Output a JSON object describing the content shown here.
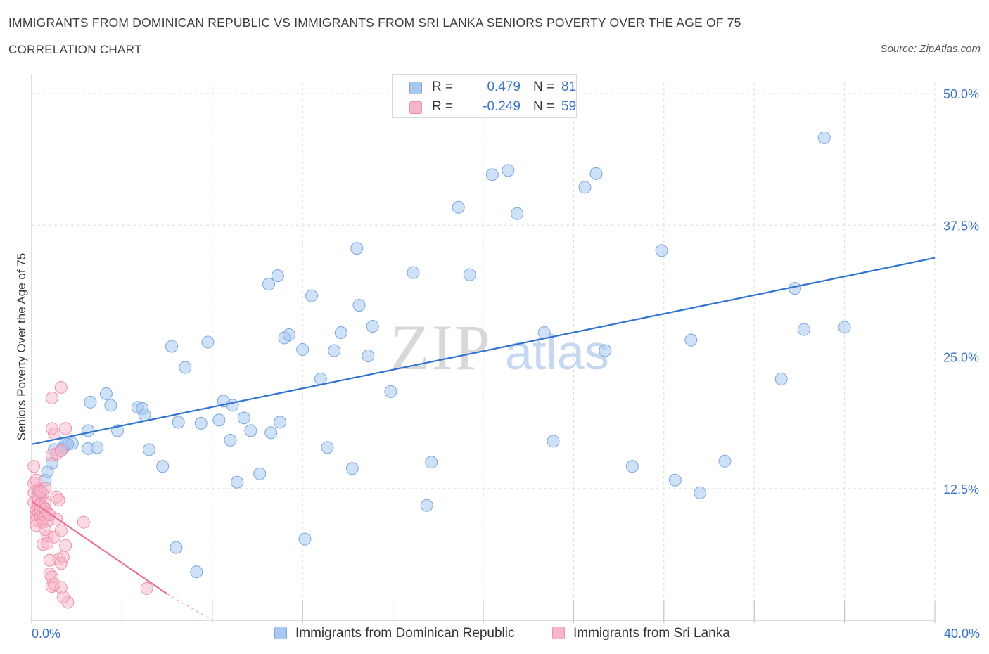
{
  "header": {
    "title": "IMMIGRANTS FROM DOMINICAN REPUBLIC VS IMMIGRANTS FROM SRI LANKA SENIORS POVERTY OVER THE AGE OF 75",
    "subtitle": "CORRELATION CHART",
    "source": "Source: ZipAtlas.com"
  },
  "legend": {
    "rows": [
      {
        "r_label": "R =",
        "r_value": "0.479",
        "n_label": "N =",
        "n_value": "81"
      },
      {
        "r_label": "R =",
        "r_value": "-0.249",
        "n_label": "N =",
        "n_value": "59"
      }
    ]
  },
  "colors": {
    "blue_fill": "#a8c8f0",
    "blue_stroke": "#7aa6e0",
    "blue_line": "#2f72d0",
    "pink_fill": "#f5b6c8",
    "pink_stroke": "#ef8fab",
    "pink_line": "#e8709a",
    "grid": "#dddddd",
    "axis_text": "#3b73c8"
  },
  "chart_data": {
    "type": "scatter",
    "title": "IMMIGRANTS FROM DOMINICAN REPUBLIC VS IMMIGRANTS FROM SRI LANKA SENIORS POVERTY OVER THE AGE OF 75",
    "xlabel": "",
    "ylabel": "Seniors Poverty Over the Age of 75",
    "xlim": [
      0,
      40
    ],
    "ylim": [
      0,
      50
    ],
    "x_tick_labels": [
      "0.0%",
      "40.0%"
    ],
    "y_ticks": [
      12.5,
      25,
      37.5,
      50
    ],
    "y_tick_labels": [
      "12.5%",
      "25.0%",
      "37.5%",
      "50.0%"
    ],
    "grid": true,
    "legend_position": "top-center",
    "watermark": "ZIPatlas",
    "series": [
      {
        "name": "Immigrants from Dominican Republic",
        "color": "#a8c8f0",
        "r": 0.479,
        "n": 81,
        "trend": {
          "x": [
            0,
            40
          ],
          "y": [
            16.7,
            34.4
          ]
        },
        "points": [
          [
            0.3,
            12.2
          ],
          [
            0.4,
            11.8
          ],
          [
            0.6,
            13.3
          ],
          [
            0.9,
            14.9
          ],
          [
            1.0,
            16.2
          ],
          [
            1.4,
            16.4
          ],
          [
            1.5,
            16.8
          ],
          [
            0.7,
            14.1
          ],
          [
            2.5,
            16.3
          ],
          [
            2.9,
            16.4
          ],
          [
            1.3,
            16.1
          ],
          [
            1.8,
            16.8
          ],
          [
            2.5,
            18.0
          ],
          [
            2.6,
            20.7
          ],
          [
            3.3,
            21.5
          ],
          [
            3.5,
            20.4
          ],
          [
            4.7,
            20.2
          ],
          [
            4.9,
            20.1
          ],
          [
            5.2,
            16.2
          ],
          [
            5.8,
            14.6
          ],
          [
            5.0,
            19.5
          ],
          [
            6.5,
            18.8
          ],
          [
            6.2,
            26.0
          ],
          [
            6.8,
            24.0
          ],
          [
            7.5,
            18.7
          ],
          [
            7.8,
            26.4
          ],
          [
            8.3,
            19.0
          ],
          [
            8.5,
            20.8
          ],
          [
            8.8,
            17.1
          ],
          [
            8.9,
            20.4
          ],
          [
            9.1,
            13.1
          ],
          [
            9.4,
            19.2
          ],
          [
            9.7,
            18.0
          ],
          [
            10.1,
            13.9
          ],
          [
            10.5,
            31.9
          ],
          [
            10.9,
            32.7
          ],
          [
            10.6,
            17.8
          ],
          [
            11.0,
            18.8
          ],
          [
            11.2,
            26.8
          ],
          [
            11.4,
            27.1
          ],
          [
            12.0,
            25.7
          ],
          [
            12.1,
            7.7
          ],
          [
            12.4,
            30.8
          ],
          [
            12.8,
            22.9
          ],
          [
            13.1,
            16.4
          ],
          [
            13.4,
            25.6
          ],
          [
            13.7,
            27.3
          ],
          [
            14.2,
            14.4
          ],
          [
            14.4,
            35.3
          ],
          [
            14.5,
            29.9
          ],
          [
            14.9,
            25.1
          ],
          [
            15.1,
            27.9
          ],
          [
            15.9,
            21.7
          ],
          [
            16.9,
            33.0
          ],
          [
            17.5,
            10.9
          ],
          [
            17.7,
            15.0
          ],
          [
            18.9,
            39.2
          ],
          [
            19.4,
            32.8
          ],
          [
            20.4,
            42.3
          ],
          [
            21.1,
            42.7
          ],
          [
            21.5,
            38.6
          ],
          [
            22.7,
            27.3
          ],
          [
            23.1,
            17.0
          ],
          [
            24.5,
            41.1
          ],
          [
            25.0,
            42.4
          ],
          [
            25.4,
            25.6
          ],
          [
            26.6,
            14.6
          ],
          [
            27.9,
            35.1
          ],
          [
            28.5,
            13.3
          ],
          [
            29.2,
            26.6
          ],
          [
            29.6,
            12.1
          ],
          [
            30.7,
            15.1
          ],
          [
            33.2,
            22.9
          ],
          [
            33.8,
            31.5
          ],
          [
            34.2,
            27.6
          ],
          [
            35.1,
            45.8
          ],
          [
            36.0,
            27.8
          ],
          [
            6.4,
            6.9
          ],
          [
            7.3,
            4.6
          ],
          [
            1.6,
            16.7
          ],
          [
            3.8,
            18.0
          ]
        ]
      },
      {
        "name": "Immigrants from Sri Lanka",
        "color": "#f5b6c8",
        "r": -0.249,
        "n": 59,
        "trend": {
          "x": [
            0,
            6.0
          ],
          "y": [
            11.3,
            2.5
          ]
        },
        "trend_dashed": {
          "x": [
            6.0,
            8.0
          ],
          "y": [
            2.5,
            -0.4
          ]
        },
        "points": [
          [
            0.1,
            14.6
          ],
          [
            0.1,
            13.0
          ],
          [
            0.1,
            12.1
          ],
          [
            0.1,
            11.2
          ],
          [
            0.2,
            10.4
          ],
          [
            0.2,
            10.0
          ],
          [
            0.2,
            9.5
          ],
          [
            0.2,
            9.0
          ],
          [
            0.3,
            12.4
          ],
          [
            0.3,
            11.6
          ],
          [
            0.3,
            10.9
          ],
          [
            0.3,
            10.2
          ],
          [
            0.4,
            9.8
          ],
          [
            0.4,
            11.0
          ],
          [
            0.4,
            10.5
          ],
          [
            0.5,
            12.0
          ],
          [
            0.5,
            9.6
          ],
          [
            0.5,
            10.7
          ],
          [
            0.5,
            9.3
          ],
          [
            0.5,
            7.2
          ],
          [
            0.6,
            12.5
          ],
          [
            0.6,
            11.1
          ],
          [
            0.6,
            10.6
          ],
          [
            0.6,
            9.9
          ],
          [
            0.7,
            10.2
          ],
          [
            0.7,
            9.4
          ],
          [
            0.7,
            8.0
          ],
          [
            0.7,
            7.3
          ],
          [
            0.8,
            10.0
          ],
          [
            0.8,
            5.7
          ],
          [
            0.8,
            4.4
          ],
          [
            0.9,
            3.2
          ],
          [
            0.9,
            4.1
          ],
          [
            0.9,
            21.1
          ],
          [
            0.9,
            18.2
          ],
          [
            0.9,
            15.7
          ],
          [
            1.0,
            17.7
          ],
          [
            1.0,
            7.9
          ],
          [
            1.1,
            11.7
          ],
          [
            1.1,
            15.8
          ],
          [
            1.1,
            9.6
          ],
          [
            1.2,
            5.8
          ],
          [
            1.2,
            11.4
          ],
          [
            1.3,
            3.1
          ],
          [
            1.3,
            8.5
          ],
          [
            1.3,
            22.1
          ],
          [
            1.3,
            16.1
          ],
          [
            1.3,
            5.4
          ],
          [
            1.4,
            6.0
          ],
          [
            1.5,
            7.1
          ],
          [
            1.5,
            18.2
          ],
          [
            1.6,
            1.7
          ],
          [
            2.3,
            9.3
          ],
          [
            0.6,
            8.6
          ],
          [
            1.4,
            2.2
          ],
          [
            1.0,
            3.4
          ],
          [
            0.4,
            12.2
          ],
          [
            0.2,
            13.3
          ],
          [
            5.1,
            3.0
          ]
        ]
      }
    ]
  },
  "bottom_legend": {
    "items": [
      {
        "label": "Immigrants from Dominican Republic"
      },
      {
        "label": "Immigrants from Sri Lanka"
      }
    ]
  }
}
